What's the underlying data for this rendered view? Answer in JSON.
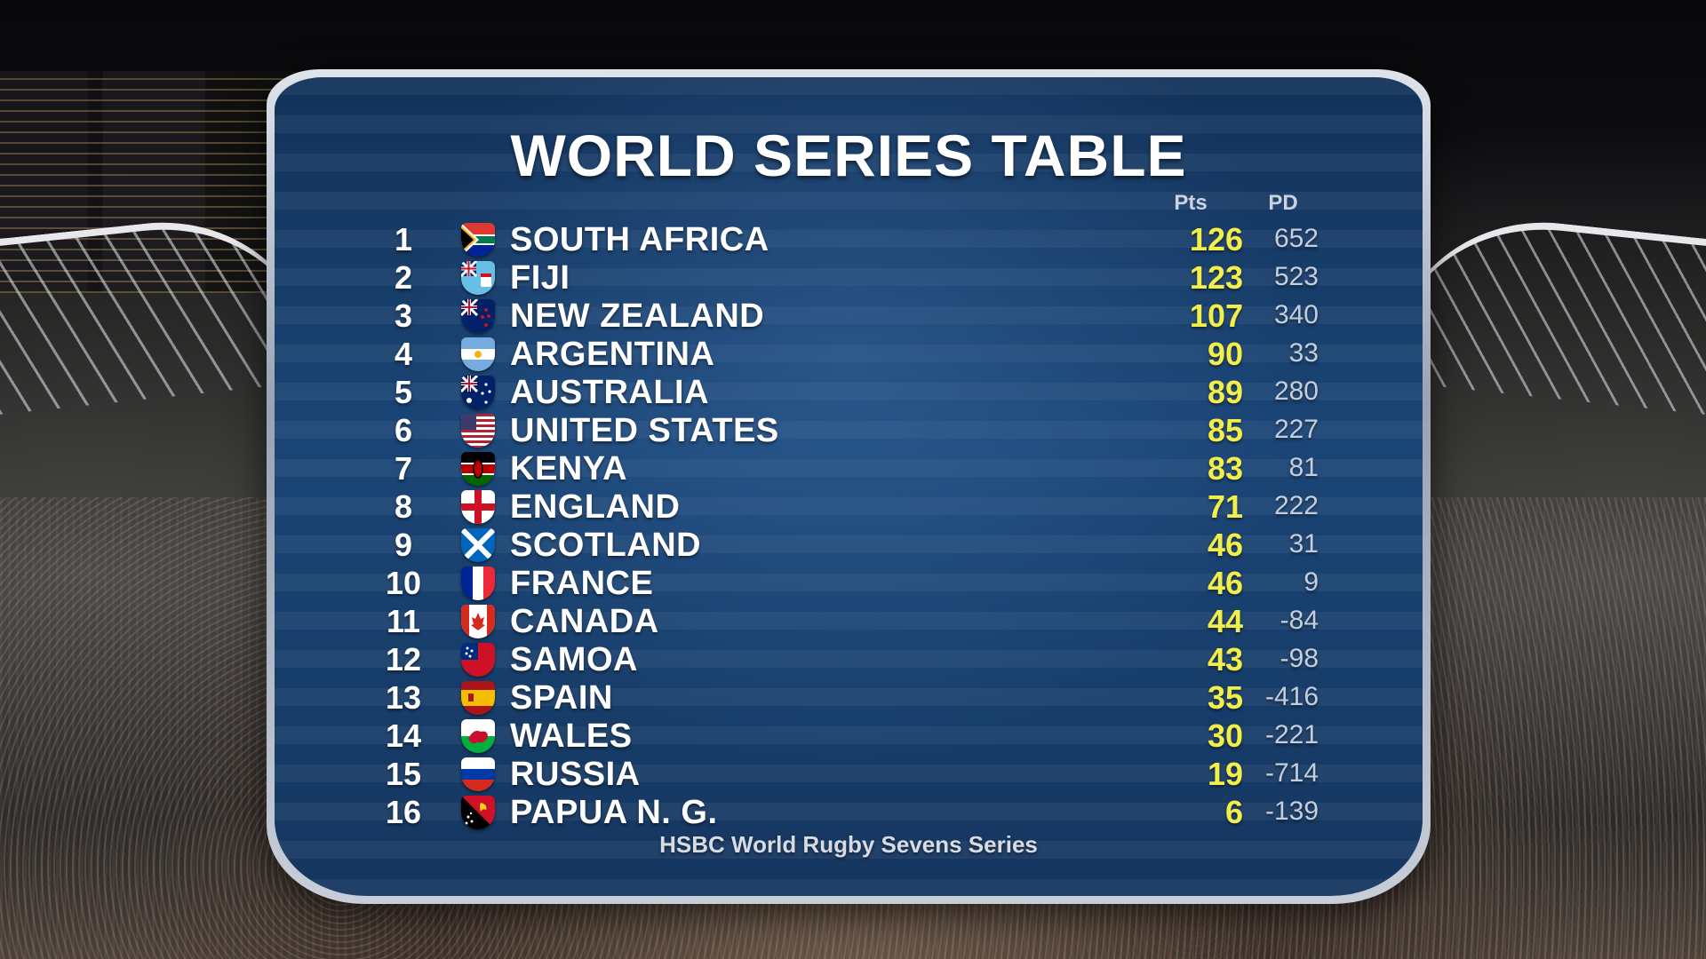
{
  "title": "WORLD SERIES TABLE",
  "headers": {
    "pts": "Pts",
    "pd": "PD"
  },
  "footer": "HSBC World Rugby Sevens Series",
  "rows": [
    {
      "rank": "1",
      "team": "SOUTH AFRICA",
      "pts": "126",
      "pd": "652",
      "flag": "south-africa-flag"
    },
    {
      "rank": "2",
      "team": "FIJI",
      "pts": "123",
      "pd": "523",
      "flag": "fiji-flag"
    },
    {
      "rank": "3",
      "team": "NEW ZEALAND",
      "pts": "107",
      "pd": "340",
      "flag": "new-zealand-flag"
    },
    {
      "rank": "4",
      "team": "ARGENTINA",
      "pts": "90",
      "pd": "33",
      "flag": "argentina-flag"
    },
    {
      "rank": "5",
      "team": "AUSTRALIA",
      "pts": "89",
      "pd": "280",
      "flag": "australia-flag"
    },
    {
      "rank": "6",
      "team": "UNITED STATES",
      "pts": "85",
      "pd": "227",
      "flag": "united-states-flag"
    },
    {
      "rank": "7",
      "team": "KENYA",
      "pts": "83",
      "pd": "81",
      "flag": "kenya-flag"
    },
    {
      "rank": "8",
      "team": "ENGLAND",
      "pts": "71",
      "pd": "222",
      "flag": "england-flag"
    },
    {
      "rank": "9",
      "team": "SCOTLAND",
      "pts": "46",
      "pd": "31",
      "flag": "scotland-flag"
    },
    {
      "rank": "10",
      "team": "FRANCE",
      "pts": "46",
      "pd": "9",
      "flag": "france-flag"
    },
    {
      "rank": "11",
      "team": "CANADA",
      "pts": "44",
      "pd": "-84",
      "flag": "canada-flag"
    },
    {
      "rank": "12",
      "team": "SAMOA",
      "pts": "43",
      "pd": "-98",
      "flag": "samoa-flag"
    },
    {
      "rank": "13",
      "team": "SPAIN",
      "pts": "35",
      "pd": "-416",
      "flag": "spain-flag"
    },
    {
      "rank": "14",
      "team": "WALES",
      "pts": "30",
      "pd": "-221",
      "flag": "wales-flag"
    },
    {
      "rank": "15",
      "team": "RUSSIA",
      "pts": "19",
      "pd": "-714",
      "flag": "russia-flag"
    },
    {
      "rank": "16",
      "team": "PAPUA N. G.",
      "pts": "6",
      "pd": "-139",
      "flag": "papua-new-guinea-flag"
    }
  ]
}
